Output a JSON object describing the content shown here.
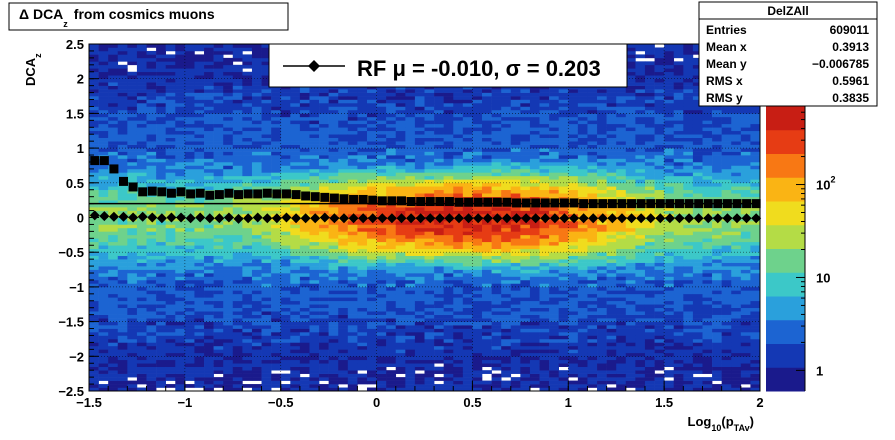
{
  "title_box": {
    "prefix": "Δ DCA",
    "sub": "z",
    "suffix": "from cosmics muons"
  },
  "stats_box": {
    "name": "DelZAll",
    "rows": [
      {
        "label": "Entries",
        "value": "609011"
      },
      {
        "label": "Mean x",
        "value": "0.3913"
      },
      {
        "label": "Mean y",
        "value": "−0.006785"
      },
      {
        "label": "RMS x",
        "value": "0.5961"
      },
      {
        "label": "RMS y",
        "value": "0.3835"
      }
    ]
  },
  "legend": {
    "text": "RF μ = -0.010, σ =   0.203"
  },
  "colors": {
    "palette": [
      "#1a1a8c",
      "#1438b4",
      "#1c64d2",
      "#2aa0dc",
      "#3cc8c8",
      "#6ed28c",
      "#b4dc46",
      "#f0dc1e",
      "#fab414",
      "#f87814",
      "#e63c14",
      "#c81e14"
    ],
    "frame": "#000000"
  },
  "chart_data": {
    "type": "heatmap",
    "xlabel": {
      "main": "Log",
      "sub1": "10",
      "mid": "(p",
      "sub2": "TAv",
      "end": ")"
    },
    "ylabel": {
      "main": "DCA",
      "sub": "z"
    },
    "xlim": [
      -1.5,
      2.0
    ],
    "ylim": [
      -2.5,
      2.5
    ],
    "x_ticks": [
      -1.5,
      -1.0,
      -0.5,
      0.0,
      0.5,
      1.0,
      1.5,
      2.0
    ],
    "x_tick_labels": [
      "−1.5",
      "−1",
      "−0.5",
      "0",
      "0.5",
      "1",
      "1.5",
      "2"
    ],
    "y_ticks": [
      -2.5,
      -2.0,
      -1.5,
      -1.0,
      -0.5,
      0.0,
      0.5,
      1.0,
      1.5,
      2.0,
      2.5
    ],
    "y_tick_labels": [
      "−2.5",
      "−2",
      "−1.5",
      "−1",
      "−0.5",
      "0",
      "0.5",
      "1",
      "1.5",
      "2",
      "2.5"
    ],
    "z_scale": "log",
    "z_range": [
      0.6,
      700
    ],
    "z_tick_labels": [
      {
        "value": 1,
        "label": "1"
      },
      {
        "value": 10,
        "label": "10"
      },
      {
        "value": 100,
        "label": "10",
        "exp": "2"
      }
    ],
    "grid": true,
    "reference_line_y": 0.2,
    "series": [
      {
        "name": "RF",
        "marker": "diamond",
        "x": [
          -1.47,
          -1.42,
          -1.37,
          -1.32,
          -1.27,
          -1.22,
          -1.17,
          -1.12,
          -1.07,
          -1.02,
          -0.97,
          -0.92,
          -0.87,
          -0.82,
          -0.77,
          -0.72,
          -0.67,
          -0.62,
          -0.57,
          -0.52,
          -0.47,
          -0.42,
          -0.37,
          -0.32,
          -0.27,
          -0.22,
          -0.17,
          -0.12,
          -0.07,
          -0.02,
          0.03,
          0.08,
          0.13,
          0.18,
          0.23,
          0.28,
          0.33,
          0.38,
          0.43,
          0.48,
          0.53,
          0.58,
          0.63,
          0.68,
          0.73,
          0.78,
          0.83,
          0.88,
          0.93,
          0.98,
          1.03,
          1.08,
          1.13,
          1.18,
          1.23,
          1.28,
          1.33,
          1.38,
          1.43,
          1.48,
          1.53,
          1.58,
          1.63,
          1.68,
          1.73,
          1.78,
          1.83,
          1.88,
          1.93,
          1.98
        ],
        "y": [
          0.03,
          0.02,
          0.01,
          0.01,
          0.0,
          0.01,
          0.0,
          -0.01,
          0.0,
          0.0,
          -0.01,
          0.0,
          -0.01,
          -0.01,
          0.0,
          -0.02,
          -0.01,
          0.0,
          -0.01,
          -0.01,
          0.0,
          -0.01,
          -0.01,
          -0.01,
          0.0,
          -0.01,
          -0.01,
          -0.01,
          -0.01,
          -0.01,
          -0.01,
          -0.01,
          -0.01,
          -0.01,
          -0.01,
          -0.01,
          -0.01,
          -0.01,
          -0.01,
          -0.01,
          -0.01,
          -0.01,
          -0.01,
          -0.01,
          -0.01,
          -0.01,
          -0.01,
          -0.01,
          -0.01,
          -0.01,
          -0.01,
          -0.01,
          -0.01,
          -0.01,
          -0.01,
          -0.01,
          -0.01,
          -0.01,
          -0.01,
          -0.01,
          -0.01,
          -0.01,
          -0.01,
          -0.01,
          -0.01,
          -0.01,
          -0.01,
          -0.01,
          -0.01,
          -0.01
        ]
      },
      {
        "marker": "square",
        "x": [
          -1.47,
          -1.42,
          -1.37,
          -1.32,
          -1.27,
          -1.22,
          -1.17,
          -1.12,
          -1.07,
          -1.02,
          -0.97,
          -0.92,
          -0.87,
          -0.82,
          -0.77,
          -0.72,
          -0.67,
          -0.62,
          -0.57,
          -0.52,
          -0.47,
          -0.42,
          -0.37,
          -0.32,
          -0.27,
          -0.22,
          -0.17,
          -0.12,
          -0.07,
          -0.02,
          0.03,
          0.08,
          0.13,
          0.18,
          0.23,
          0.28,
          0.33,
          0.38,
          0.43,
          0.48,
          0.53,
          0.58,
          0.63,
          0.68,
          0.73,
          0.78,
          0.83,
          0.88,
          0.93,
          0.98,
          1.03,
          1.08,
          1.13,
          1.18,
          1.23,
          1.28,
          1.33,
          1.38,
          1.43,
          1.48,
          1.53,
          1.58,
          1.63,
          1.68,
          1.73,
          1.78,
          1.83,
          1.88,
          1.93,
          1.98
        ],
        "y": [
          0.82,
          0.82,
          0.7,
          0.52,
          0.44,
          0.37,
          0.38,
          0.37,
          0.35,
          0.37,
          0.34,
          0.35,
          0.32,
          0.33,
          0.35,
          0.33,
          0.34,
          0.34,
          0.35,
          0.34,
          0.34,
          0.33,
          0.31,
          0.3,
          0.29,
          0.28,
          0.27,
          0.26,
          0.26,
          0.25,
          0.24,
          0.24,
          0.24,
          0.23,
          0.23,
          0.23,
          0.23,
          0.23,
          0.22,
          0.22,
          0.22,
          0.22,
          0.22,
          0.22,
          0.21,
          0.21,
          0.21,
          0.21,
          0.21,
          0.21,
          0.21,
          0.2,
          0.2,
          0.2,
          0.2,
          0.2,
          0.2,
          0.2,
          0.2,
          0.2,
          0.2,
          0.2,
          0.2,
          0.2,
          0.2,
          0.2,
          0.2,
          0.2,
          0.2,
          0.2
        ]
      }
    ]
  }
}
